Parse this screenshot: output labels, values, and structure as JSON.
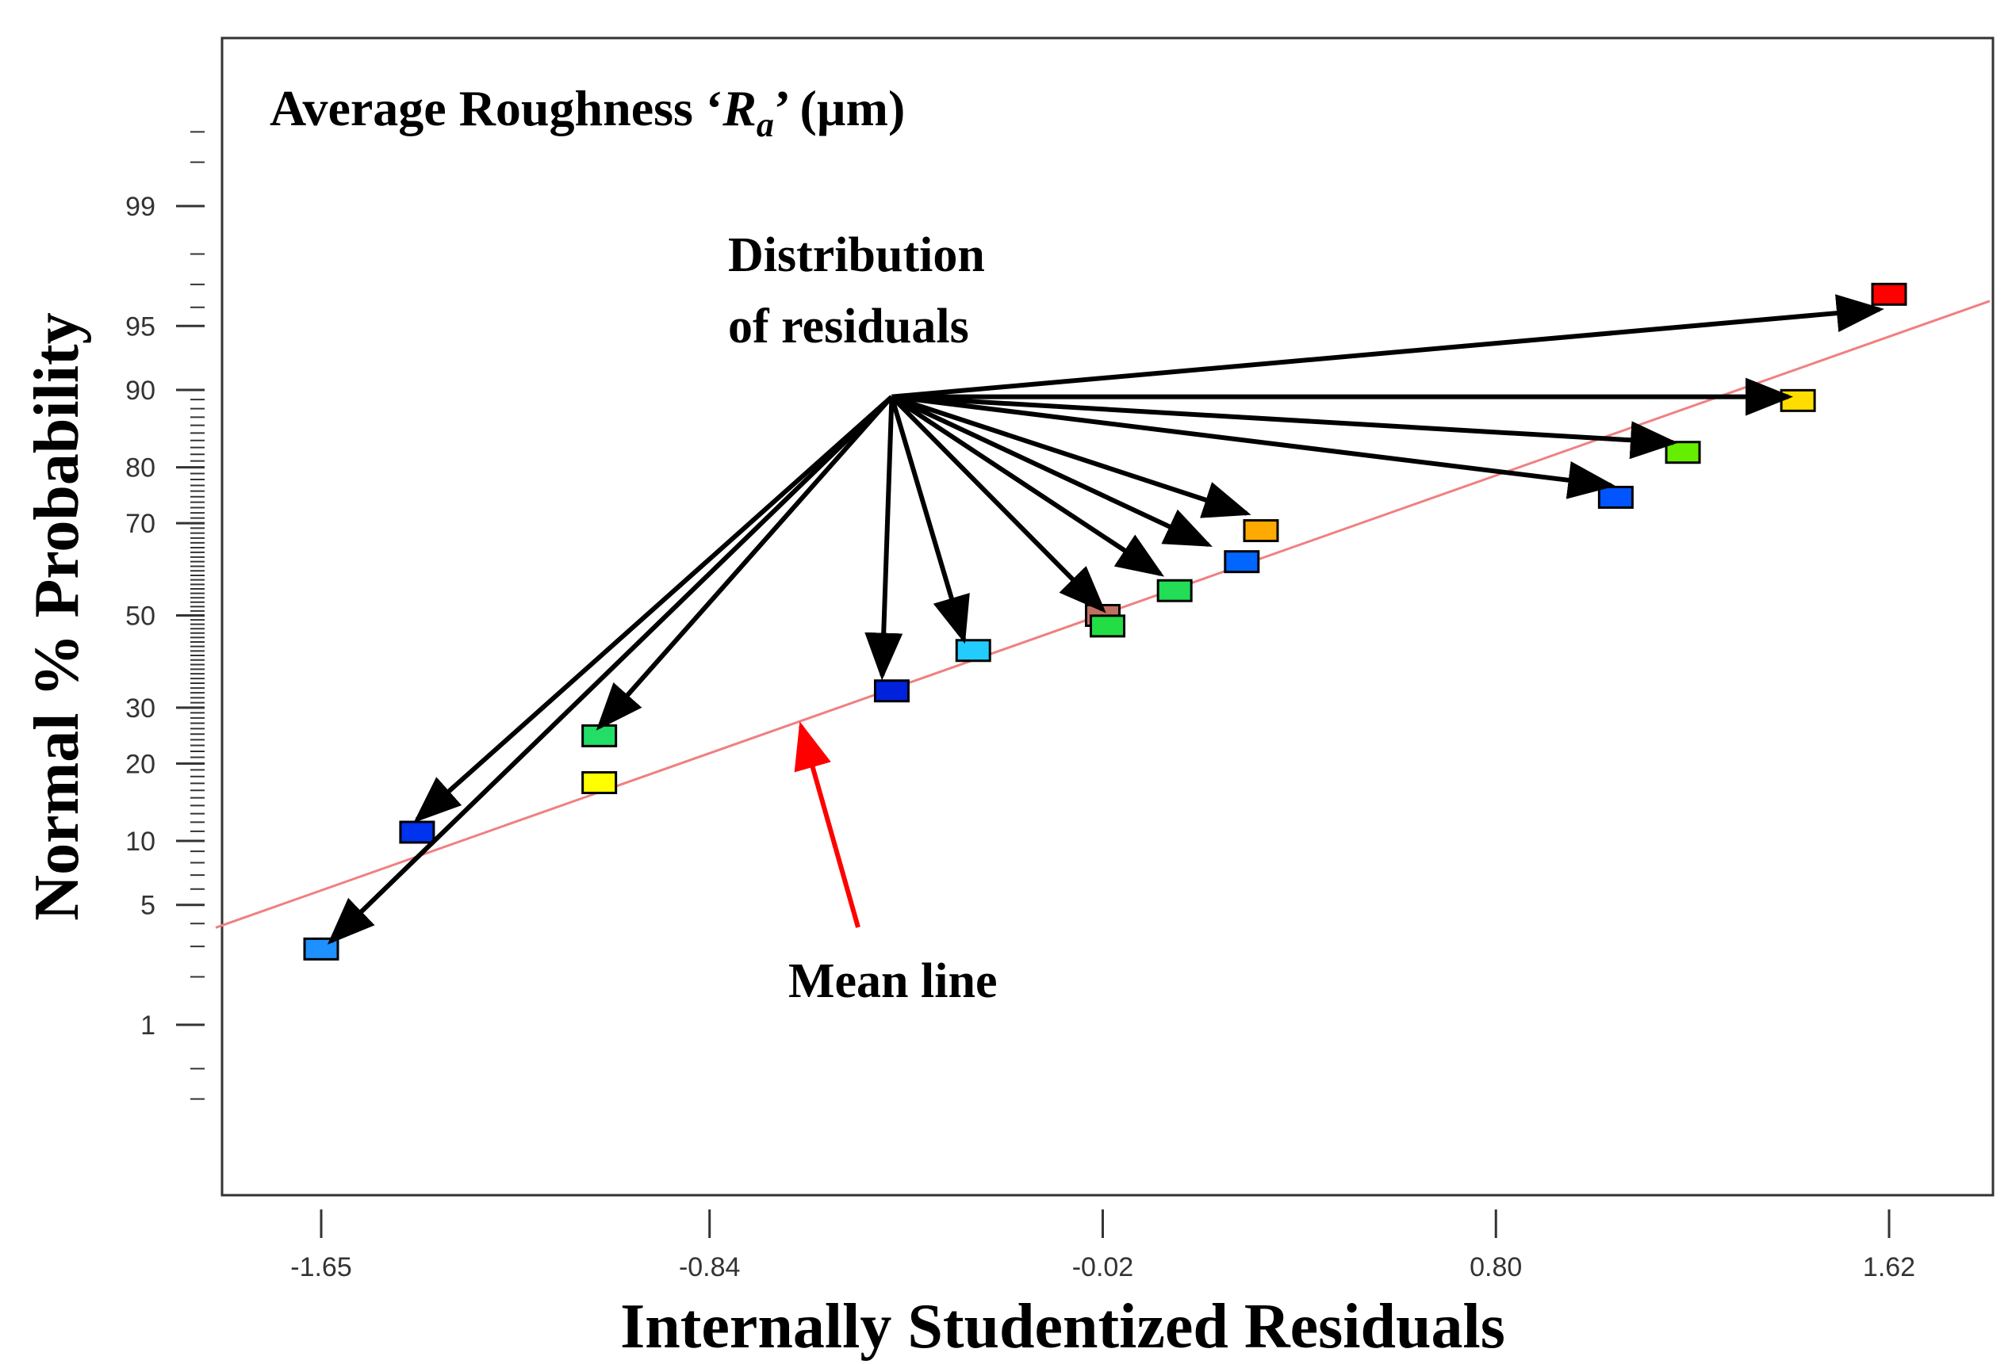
{
  "chart_data": {
    "type": "scatter",
    "title": "Average Roughness ‘",
    "title_var": "R",
    "title_sub": "a",
    "title_suffix": "’ (µm)",
    "xlabel": "Internally Studentized Residuals",
    "ylabel": "Normal % Probability",
    "x_ticks": [
      -1.65,
      -0.84,
      -0.02,
      0.8,
      1.62
    ],
    "x_tick_labels": [
      "-1.65",
      "-0.84",
      "-0.02",
      "0.80",
      "1.62"
    ],
    "y_ticks": [
      1,
      5,
      10,
      20,
      30,
      50,
      70,
      80,
      90,
      95,
      99
    ],
    "y_tick_labels": [
      "1",
      "5",
      "10",
      "20",
      "30",
      "50",
      "70",
      "80",
      "90",
      "95",
      "99"
    ],
    "xlim": [
      -1.87,
      1.83
    ],
    "ylim_scale": "normal probability",
    "annotations": {
      "distribution": [
        "Distribution",
        "of residuals"
      ],
      "mean_line": "Mean line"
    },
    "mean_line": {
      "x": [
        -1.87,
        1.83
      ],
      "y": [
        3.8,
        96.3
      ],
      "color": "#f08080"
    },
    "points": [
      {
        "x": -1.65,
        "y": 2.9,
        "color": "#1e90ff"
      },
      {
        "x": -1.45,
        "y": 10.9,
        "color": "#0033ee"
      },
      {
        "x": -1.07,
        "y": 17.1,
        "color": "#ffff00"
      },
      {
        "x": -1.07,
        "y": 24.7,
        "color": "#22dd66"
      },
      {
        "x": -0.46,
        "y": 33.4,
        "color": "#0022dd"
      },
      {
        "x": -0.29,
        "y": 42.1,
        "color": "#22ccff"
      },
      {
        "x": -0.02,
        "y": 50.0,
        "color": "#c07060"
      },
      {
        "x": -0.01,
        "y": 47.6,
        "color": "#22dd44"
      },
      {
        "x": 0.13,
        "y": 55.6,
        "color": "#22dd55"
      },
      {
        "x": 0.27,
        "y": 62.0,
        "color": "#0066ff"
      },
      {
        "x": 0.31,
        "y": 68.5,
        "color": "#ffaa00"
      },
      {
        "x": 1.05,
        "y": 74.9,
        "color": "#0055ff"
      },
      {
        "x": 1.19,
        "y": 82.3,
        "color": "#66ee00"
      },
      {
        "x": 1.43,
        "y": 88.9,
        "color": "#ffdd00"
      },
      {
        "x": 1.62,
        "y": 96.6,
        "color": "#ff0000"
      }
    ],
    "arrows": {
      "origin": {
        "x": -0.46,
        "y": 89.3
      },
      "targets": [
        {
          "x": -1.63,
          "y": 3.2
        },
        {
          "x": -1.45,
          "y": 12.3
        },
        {
          "x": -1.07,
          "y": 26.3
        },
        {
          "x": -0.48,
          "y": 36.6
        },
        {
          "x": -0.31,
          "y": 44.6
        },
        {
          "x": -0.02,
          "y": 51.3
        },
        {
          "x": 0.1,
          "y": 59.3
        },
        {
          "x": 0.2,
          "y": 65.6
        },
        {
          "x": 0.28,
          "y": 71.9
        },
        {
          "x": 1.04,
          "y": 77.0
        },
        {
          "x": 1.17,
          "y": 83.7
        },
        {
          "x": 1.41,
          "y": 89.3
        },
        {
          "x": 1.6,
          "y": 95.9
        }
      ]
    },
    "colors": {
      "axis": "#333333",
      "arrow": "#000000",
      "mean_arrow": "#ff0000"
    }
  }
}
